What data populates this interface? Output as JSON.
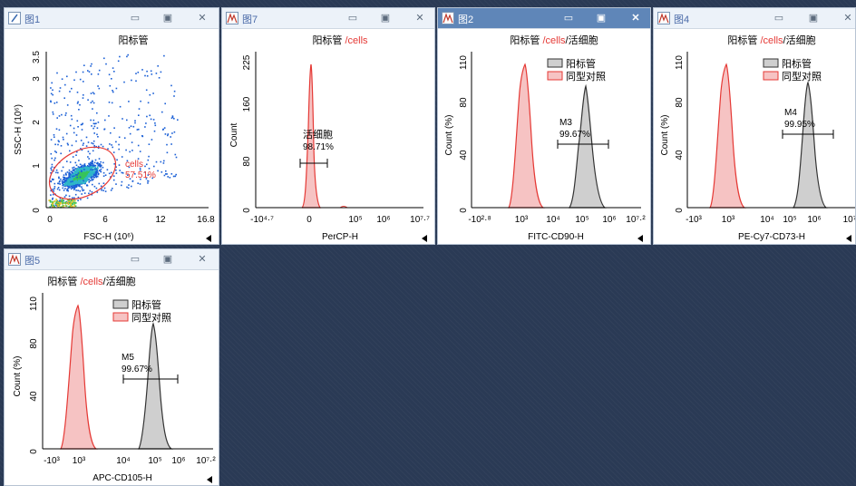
{
  "colors": {
    "desktop": "#2a3a55",
    "red": "#e53935",
    "gray_fill": "#cfcfcf",
    "dots": "#1a5fd6",
    "title_active": "#5f86b8"
  },
  "icons": {
    "min": "minimize-icon",
    "max": "maximize-icon",
    "close": "close-icon",
    "menu": "triangle-left-icon"
  },
  "windows": {
    "w1": {
      "title": "图1",
      "sample_title": "阳标管",
      "x_label": "FSC-H  (10⁶)",
      "y_label": "SSC-H  (10⁶)",
      "x_ticks": [
        "0",
        "6",
        "12",
        "16.8"
      ],
      "y_ticks": [
        "0",
        "1",
        "2",
        "3",
        "3.5"
      ],
      "gate_name": "cells",
      "gate_pct": "57.51%"
    },
    "w7": {
      "title": "图7",
      "sample_title_a": "阳标管 ",
      "sample_title_b": "/cells",
      "x_label": "PerCP-H",
      "y_label": "Count",
      "x_ticks": [
        "-10⁴·⁷",
        "0",
        "10⁵",
        "10⁶",
        "10⁷·⁷"
      ],
      "y_ticks": [
        "0",
        "80",
        "160",
        "225"
      ],
      "marker_name": "活细胞",
      "marker_pct": "98.71%"
    },
    "w2": {
      "title": "图2",
      "sample_title_a": "阳标管 ",
      "sample_title_b": "/cells",
      "sample_title_c": "/活细胞",
      "x_label": "FITC-CD90-H",
      "y_label": "Count (%)",
      "x_ticks": [
        "-10²·⁸",
        "10³",
        "10⁴",
        "10⁵",
        "10⁶",
        "10⁷·²"
      ],
      "y_ticks": [
        "0",
        "40",
        "80",
        "110"
      ],
      "legend": [
        "阳标管",
        "同型对照"
      ],
      "marker_name": "M3",
      "marker_pct": "99.67%"
    },
    "w4": {
      "title": "图4",
      "sample_title_a": "阳标管 ",
      "sample_title_b": "/cells",
      "sample_title_c": "/活细胞",
      "x_label": "PE-Cy7-CD73-H",
      "y_label": "Count (%)",
      "x_ticks": [
        "-10³",
        "10³",
        "10⁴",
        "10⁵",
        "10⁶",
        "10⁷"
      ],
      "y_ticks": [
        "0",
        "40",
        "80",
        "110"
      ],
      "legend": [
        "阳标管",
        "同型对照"
      ],
      "marker_name": "M4",
      "marker_pct": "99.95%"
    },
    "w5": {
      "title": "图5",
      "sample_title_a": "阳标管 ",
      "sample_title_b": "/cells",
      "sample_title_c": "/活细胞",
      "x_label": "APC-CD105-H",
      "y_label": "Count (%)",
      "x_ticks": [
        "-10³",
        "10³",
        "10⁴",
        "10⁵",
        "10⁶",
        "10⁷·²"
      ],
      "y_ticks": [
        "0",
        "40",
        "80",
        "110"
      ],
      "legend": [
        "阳标管",
        "同型对照"
      ],
      "marker_name": "M5",
      "marker_pct": "99.67%"
    }
  }
}
